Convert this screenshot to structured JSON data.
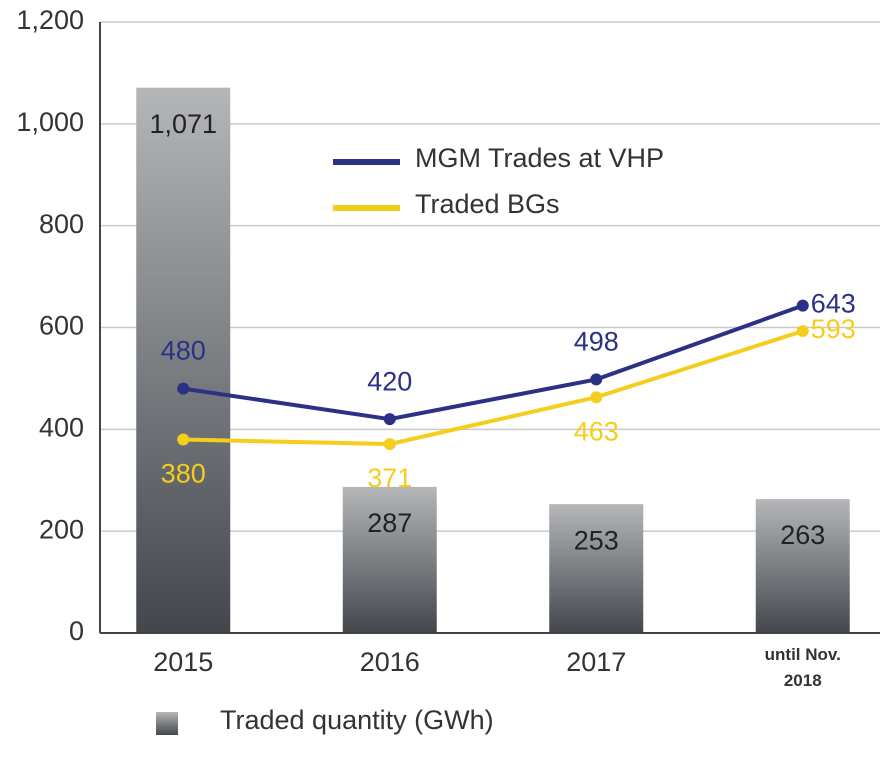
{
  "chart_data": {
    "type": "bar",
    "categories": [
      "2015",
      "2016",
      "2017",
      "until Nov. 2018"
    ],
    "bars": {
      "name": "Traded quantity (GWh)",
      "values": [
        1071,
        287,
        253,
        263
      ],
      "value_labels": [
        "1,071",
        "287",
        "253",
        "263"
      ]
    },
    "series": [
      {
        "name": "MGM Trades at VHP",
        "color": "#2b3184",
        "values": [
          480,
          420,
          498,
          643
        ]
      },
      {
        "name": "Traded BGs",
        "color": "#f5cd1c",
        "values": [
          380,
          371,
          463,
          593
        ]
      }
    ],
    "ylim": [
      0,
      1200
    ],
    "yticks": [
      0,
      200,
      400,
      600,
      800,
      {
        "value": 1000,
        "label": "1,000"
      },
      {
        "value": 1200,
        "label": "1,200"
      }
    ],
    "grid": true
  }
}
